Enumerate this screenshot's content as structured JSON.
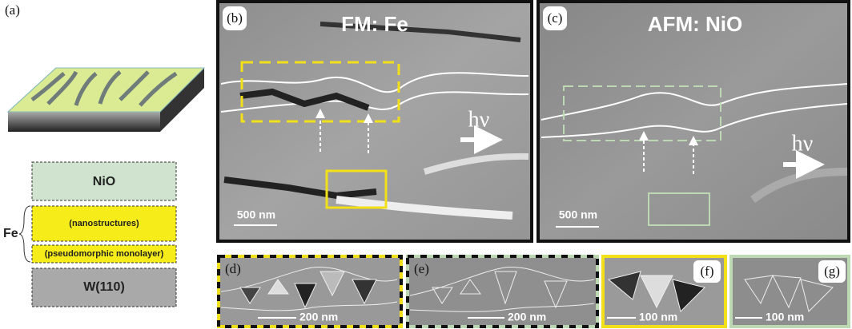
{
  "panels": {
    "a": {
      "label": "(a)",
      "layers": [
        "NiO",
        "(nanostructures)",
        "(pseudomorphic monolayer)",
        "W(110)"
      ],
      "fe_label": "Fe"
    },
    "b": {
      "label": "(b)",
      "title": "FM: Fe",
      "photon": "hν",
      "scale": "500 nm"
    },
    "c": {
      "label": "(c)",
      "title": "AFM: NiO",
      "photon": "hν",
      "scale": "500 nm"
    },
    "d": {
      "label": "(d)",
      "scale": "200 nm"
    },
    "e": {
      "label": "(e)",
      "scale": "200 nm"
    },
    "f": {
      "label": "(f)",
      "scale": "100 nm"
    },
    "g": {
      "label": "(g)",
      "scale": "100 nm"
    }
  }
}
